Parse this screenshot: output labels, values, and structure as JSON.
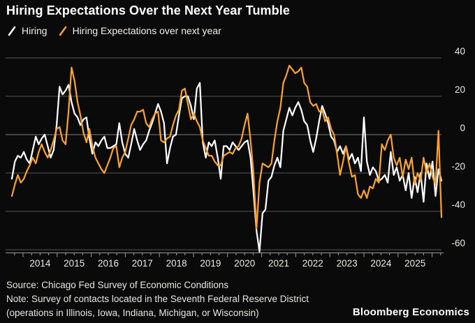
{
  "header": {
    "title": "Hiring Expectations Over the Next Year Tumble",
    "legend": [
      {
        "label": "Hiring",
        "color": "#ffffff"
      },
      {
        "label": "Hiring Expectations over next year",
        "color": "#f5a032"
      }
    ]
  },
  "footer": {
    "source": "Source: Chicago Fed Survey of Economic Conditions",
    "note1": "Note: Survey of contacts located in the Seventh Federal Reserve District",
    "note2": "(operations in Illinois, Iowa, Indiana, Michigan, or Wisconsin)",
    "brand": "Bloomberg Economics"
  },
  "colors": {
    "background": "#0a0a0a",
    "grid": "#565656",
    "zero_line": "#7d7d7d",
    "axis": "#9a9a9a",
    "tick_label": "#e9e9e5",
    "hiring": "#ffffff",
    "expectations": "#f5a032"
  },
  "chart_data": {
    "type": "line",
    "title": "Hiring Expectations Over the Next Year Tumble",
    "x_start": "2013-10",
    "x_frequency": "monthly",
    "x_years_labeled": [
      "2014",
      "2015",
      "2016",
      "2017",
      "2018",
      "2019",
      "2020",
      "2021",
      "2022",
      "2023",
      "2024",
      "2025"
    ],
    "ylim": [
      -60,
      40
    ],
    "yticks": [
      40,
      20,
      0,
      -20,
      -40,
      -60
    ],
    "grid": true,
    "legend_position": "top-left",
    "axis_side": "right",
    "series": [
      {
        "name": "Hiring",
        "color": "#ffffff",
        "values": [
          -23,
          -14,
          -11,
          -12,
          -9,
          -13,
          -15,
          -8,
          -1,
          -5,
          -2,
          0,
          -6,
          -12,
          -8,
          5,
          25,
          21,
          23,
          26,
          17,
          11,
          9,
          5,
          8,
          9,
          -2,
          -10,
          -4,
          -6,
          -3,
          -1,
          -7,
          -7,
          -6,
          -5,
          6,
          -4,
          -10,
          -12,
          -5,
          3,
          -3,
          -8,
          -5,
          -3,
          2,
          6,
          11,
          16,
          12,
          6,
          -15,
          -7,
          -1,
          0,
          10,
          19,
          20,
          20,
          15,
          8,
          24,
          27,
          -4,
          -12,
          -4,
          -6,
          -3,
          -12,
          -23,
          -6,
          -6,
          -8,
          -4,
          -6,
          -8,
          -6,
          -4,
          -3,
          -12,
          -30,
          -50,
          -61,
          -41,
          -39,
          -24,
          -22,
          -16,
          -12,
          -17,
          2,
          8,
          14,
          10,
          14,
          17,
          13,
          7,
          5,
          -3,
          -9,
          -2,
          7,
          15,
          11,
          6,
          -1,
          -3,
          -9,
          -6,
          -10,
          -6,
          -13,
          -10,
          -15,
          -12,
          -19,
          9,
          -14,
          -21,
          -17,
          -19,
          -24,
          -23,
          -21,
          -25,
          -9,
          -21,
          -17,
          -24,
          -21,
          -29,
          -20,
          -33,
          -22,
          -30,
          -20,
          -35,
          -15,
          -23,
          -14,
          -32,
          -18,
          -24
        ]
      },
      {
        "name": "Hiring Expectations over next year",
        "color": "#f5a032",
        "values": [
          -32,
          -26,
          -21,
          -25,
          -23,
          -19,
          -16,
          -12,
          -15,
          -9,
          -5,
          -9,
          -12,
          -8,
          -3,
          3,
          4,
          -3,
          -5,
          12,
          35,
          28,
          17,
          10,
          1,
          -4,
          3,
          -6,
          -12,
          -15,
          -18,
          -20,
          -16,
          -12,
          -7,
          -6,
          -17,
          -12,
          -9,
          -2,
          5,
          8,
          12,
          12,
          13,
          6,
          4,
          8,
          11,
          12,
          -3,
          -4,
          -2,
          -1,
          5,
          10,
          13,
          23,
          24,
          16,
          8,
          11,
          7,
          4,
          -3,
          -7,
          -11,
          -11,
          -14,
          -16,
          -16,
          -11,
          -10,
          -9,
          -10,
          -7,
          -6,
          -2,
          5,
          11,
          -3,
          -20,
          -49,
          -25,
          -15,
          -16,
          -17,
          -15,
          -3,
          7,
          14,
          27,
          31,
          36,
          34,
          32,
          33,
          35,
          27,
          25,
          17,
          15,
          16,
          12,
          13,
          7,
          9,
          3,
          0,
          -10,
          -21,
          -14,
          -6,
          -15,
          -22,
          -21,
          -31,
          -33,
          -29,
          -33,
          -27,
          -28,
          -23,
          -25,
          -5,
          -8,
          -3,
          0,
          -12,
          -16,
          -12,
          -22,
          -13,
          -18,
          -12,
          -26,
          -20,
          -24,
          -12,
          -20,
          -15,
          -22,
          -26,
          2,
          -43
        ]
      }
    ]
  }
}
